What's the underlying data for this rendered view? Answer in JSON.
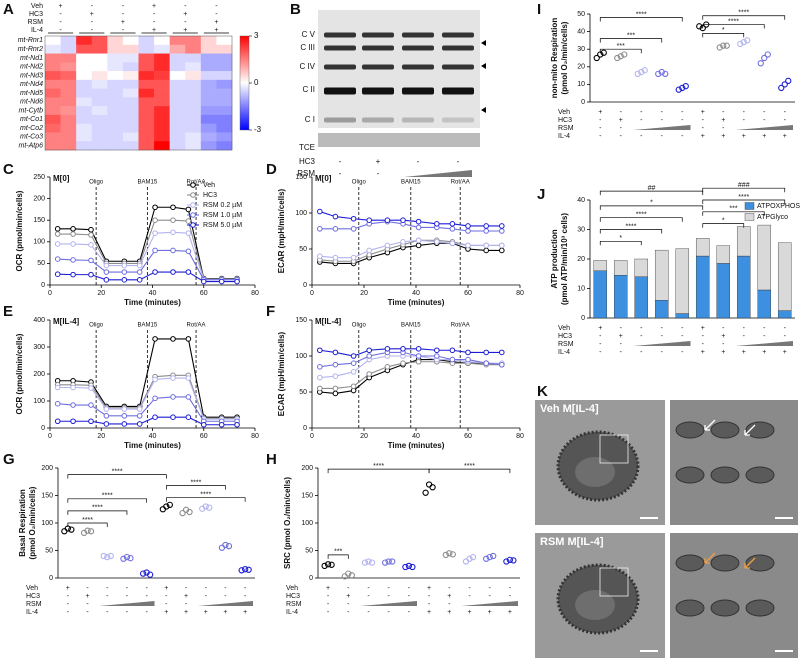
{
  "chart_data": [
    {
      "type": "heatmap",
      "panel": "A",
      "header_labels": [
        "Veh",
        "HC3",
        "RSM",
        "IL-4"
      ],
      "header_rows": [
        [
          "+",
          "-",
          "-",
          "+",
          "-",
          "-"
        ],
        [
          "-",
          "+",
          "-",
          "-",
          "+",
          "-"
        ],
        [
          "-",
          "-",
          "+",
          "-",
          "-",
          "+"
        ],
        [
          "-",
          "-",
          "-",
          "+",
          "+",
          "+"
        ]
      ],
      "rows": [
        "mt-Rnr1",
        "mt-Rnr2",
        "mt-Nd1",
        "mt-Nd2",
        "mt-Nd3",
        "mt-Nd4",
        "mt-Nd5",
        "mt-Nd6",
        "mt-Cytb",
        "mt-Co1",
        "mt-Co2",
        "mt-Co3",
        "mt-Atp6"
      ],
      "values": [
        [
          0,
          -0.5,
          2.5,
          2,
          0.5,
          0,
          -0.5,
          0,
          1.5,
          1.5,
          0.5,
          0
        ],
        [
          -0.3,
          -0.5,
          2,
          2,
          0.5,
          0.5,
          -0.5,
          -0.3,
          1,
          1.5,
          0.5,
          0.5
        ],
        [
          1.5,
          1.5,
          0,
          0,
          -0.3,
          -0.3,
          2,
          2.5,
          -0.5,
          -0.5,
          -1,
          -1
        ],
        [
          1.5,
          1.3,
          0,
          0,
          -0.3,
          -0.5,
          2,
          2.5,
          -0.5,
          -0.3,
          -1,
          -1
        ],
        [
          2,
          1.8,
          0,
          0.3,
          0,
          0.2,
          2.5,
          2.3,
          0,
          0.3,
          -0.5,
          -0.5
        ],
        [
          1.5,
          1.5,
          -0.5,
          -0.3,
          -0.5,
          -0.5,
          2,
          2,
          -0.5,
          -0.5,
          -1,
          -1.2
        ],
        [
          1.8,
          1.5,
          -0.5,
          -0.5,
          -0.5,
          -0.3,
          2.5,
          2,
          -0.5,
          -0.5,
          -1,
          -1
        ],
        [
          1.5,
          1.5,
          -0.3,
          -0.5,
          -0.5,
          -0.5,
          2,
          2,
          -0.5,
          -0.5,
          -1,
          -1
        ],
        [
          1.5,
          1.3,
          -0.5,
          -0.3,
          -0.5,
          -0.5,
          2,
          2.5,
          -0.5,
          -0.5,
          -1.2,
          -1.2
        ],
        [
          2,
          1.5,
          -0.5,
          -0.5,
          -0.5,
          -0.5,
          2,
          2.5,
          -0.5,
          -0.5,
          -1.5,
          -1.5
        ],
        [
          1.8,
          1.5,
          -0.3,
          -0.5,
          -0.5,
          -0.5,
          2,
          2.5,
          -0.5,
          -0.5,
          -1.2,
          -1.5
        ],
        [
          1.5,
          1.5,
          -0.3,
          -0.5,
          -0.5,
          -0.3,
          2,
          2.5,
          -0.5,
          -0.3,
          -1,
          -1.2
        ],
        [
          1.5,
          1.5,
          -0.5,
          -0.5,
          -0.5,
          -0.5,
          2,
          3,
          -0.5,
          -0.3,
          -1.2,
          -1.5
        ]
      ],
      "zlim": [
        -3,
        3
      ],
      "zticks": [
        3,
        0,
        -3
      ]
    },
    {
      "type": "line",
      "panel": "C",
      "title": "M[0]",
      "ylabel": "OCR (pmol/min/cells)",
      "xlabel": "Time (minutes)",
      "xlim": [
        0,
        80
      ],
      "xticks": [
        0,
        20,
        40,
        60,
        80
      ],
      "ylim": [
        0,
        250
      ],
      "yticks": [
        0,
        50,
        100,
        150,
        200,
        250
      ],
      "injections": [
        {
          "label": "Oligo",
          "x": 18
        },
        {
          "label": "BAM15",
          "x": 38
        },
        {
          "label": "Rot/AA",
          "x": 57
        }
      ],
      "x": [
        3,
        9,
        16,
        22,
        29,
        35,
        41,
        48,
        54,
        60,
        67,
        73
      ],
      "series": [
        {
          "name": "Veh",
          "color": "#000000",
          "values": [
            130,
            130,
            128,
            55,
            55,
            55,
            180,
            180,
            175,
            15,
            15,
            15
          ]
        },
        {
          "name": "HC3",
          "color": "#8c8c8c",
          "values": [
            118,
            118,
            116,
            50,
            50,
            50,
            150,
            150,
            148,
            14,
            14,
            14
          ]
        },
        {
          "name": "RSM 0.2 µM",
          "color": "#b3b3ef",
          "values": [
            95,
            95,
            93,
            45,
            45,
            45,
            120,
            122,
            120,
            13,
            13,
            13
          ]
        },
        {
          "name": "RSM 1.0 µM",
          "color": "#6e6ede",
          "values": [
            60,
            58,
            57,
            30,
            30,
            30,
            80,
            80,
            78,
            12,
            12,
            12
          ]
        },
        {
          "name": "RSM 5.0 µM",
          "color": "#1c1cd6",
          "values": [
            25,
            24,
            24,
            12,
            12,
            12,
            30,
            30,
            30,
            8,
            8,
            8
          ]
        }
      ]
    },
    {
      "type": "line",
      "panel": "D",
      "title": "M[0]",
      "ylabel": "ECAR (mpH/min/cells)",
      "xlabel": "Time (minutes)",
      "xlim": [
        0,
        80
      ],
      "xticks": [
        0,
        20,
        40,
        60,
        80
      ],
      "ylim": [
        0,
        150
      ],
      "yticks": [
        0,
        50,
        100,
        150
      ],
      "injections": [
        {
          "label": "Oligo",
          "x": 18
        },
        {
          "label": "BAM15",
          "x": 38
        },
        {
          "label": "Rot/AA",
          "x": 57
        }
      ],
      "x": [
        3,
        9,
        16,
        22,
        29,
        35,
        41,
        48,
        54,
        60,
        67,
        73
      ],
      "series": [
        {
          "color": "#000000",
          "values": [
            32,
            30,
            30,
            38,
            45,
            52,
            55,
            58,
            58,
            50,
            48,
            48
          ]
        },
        {
          "color": "#8c8c8c",
          "values": [
            35,
            33,
            33,
            42,
            50,
            56,
            62,
            62,
            60,
            55,
            55,
            55
          ]
        },
        {
          "color": "#b3b3ef",
          "values": [
            40,
            38,
            38,
            48,
            55,
            60,
            62,
            60,
            58,
            55,
            55,
            55
          ]
        },
        {
          "color": "#6e6ede",
          "values": [
            78,
            78,
            78,
            85,
            88,
            85,
            80,
            80,
            78,
            75,
            75,
            75
          ]
        },
        {
          "color": "#1c1cd6",
          "values": [
            102,
            95,
            92,
            90,
            90,
            90,
            88,
            85,
            85,
            82,
            82,
            82
          ]
        }
      ]
    },
    {
      "type": "line",
      "panel": "E",
      "title": "M[IL-4]",
      "ylabel": "OCR (pmol/min/cells)",
      "xlabel": "Time (minutes)",
      "xlim": [
        0,
        80
      ],
      "xticks": [
        0,
        20,
        40,
        60,
        80
      ],
      "ylim": [
        0,
        400
      ],
      "yticks": [
        0,
        100,
        200,
        300,
        400
      ],
      "injections": [
        {
          "label": "Oligo",
          "x": 18
        },
        {
          "label": "BAM15",
          "x": 38
        },
        {
          "label": "Rot/AA",
          "x": 57
        }
      ],
      "x": [
        3,
        9,
        16,
        22,
        29,
        35,
        41,
        48,
        54,
        60,
        67,
        73
      ],
      "series": [
        {
          "color": "#000000",
          "values": [
            175,
            175,
            170,
            80,
            80,
            80,
            330,
            330,
            330,
            40,
            40,
            40
          ]
        },
        {
          "color": "#8c8c8c",
          "values": [
            160,
            160,
            158,
            75,
            75,
            75,
            190,
            195,
            195,
            35,
            35,
            35
          ]
        },
        {
          "color": "#b3b3ef",
          "values": [
            150,
            150,
            148,
            70,
            70,
            70,
            180,
            185,
            185,
            33,
            33,
            33
          ]
        },
        {
          "color": "#6e6ede",
          "values": [
            90,
            85,
            85,
            45,
            45,
            45,
            110,
            115,
            115,
            25,
            25,
            25
          ]
        },
        {
          "color": "#1c1cd6",
          "values": [
            25,
            25,
            25,
            15,
            15,
            15,
            40,
            40,
            40,
            12,
            12,
            12
          ]
        }
      ]
    },
    {
      "type": "line",
      "panel": "F",
      "title": "M[IL-4]",
      "ylabel": "ECAR (mpH/min/cells)",
      "xlabel": "Time (minutes)",
      "xlim": [
        0,
        80
      ],
      "xticks": [
        0,
        20,
        40,
        60,
        80
      ],
      "ylim": [
        0,
        150
      ],
      "yticks": [
        0,
        50,
        100,
        150
      ],
      "injections": [
        {
          "label": "Oligo",
          "x": 18
        },
        {
          "label": "BAM15",
          "x": 38
        },
        {
          "label": "Rot/AA",
          "x": 57
        }
      ],
      "x": [
        3,
        9,
        16,
        22,
        29,
        35,
        41,
        48,
        54,
        60,
        67,
        73
      ],
      "series": [
        {
          "color": "#000000",
          "values": [
            50,
            48,
            52,
            70,
            80,
            88,
            95,
            95,
            92,
            90,
            90,
            88
          ]
        },
        {
          "color": "#8c8c8c",
          "values": [
            55,
            55,
            58,
            75,
            85,
            90,
            92,
            92,
            90,
            90,
            88,
            88
          ]
        },
        {
          "color": "#b3b3ef",
          "values": [
            70,
            72,
            78,
            95,
            100,
            100,
            100,
            95,
            95,
            92,
            90,
            90
          ]
        },
        {
          "color": "#6e6ede",
          "values": [
            85,
            88,
            90,
            100,
            105,
            105,
            100,
            100,
            95,
            95,
            90,
            88
          ]
        },
        {
          "color": "#1c1cd6",
          "values": [
            108,
            105,
            100,
            108,
            110,
            110,
            110,
            108,
            108,
            105,
            105,
            105
          ]
        }
      ]
    },
    {
      "type": "dot",
      "panel": "G",
      "ylabel": [
        "Basal Respiration",
        "(pmol O₂/min/cells)"
      ],
      "ylim": [
        0,
        200
      ],
      "yticks": [
        0,
        50,
        100,
        150,
        200
      ],
      "colors": [
        "#000000",
        "#8c8c8c",
        "#b3b3ef",
        "#6e6ede",
        "#1c1cd6",
        "#000000",
        "#8c8c8c",
        "#b3b3ef",
        "#6e6ede",
        "#1c1cd6"
      ],
      "points": [
        [
          85,
          90,
          88
        ],
        [
          82,
          86,
          85
        ],
        [
          40,
          38,
          40
        ],
        [
          35,
          38,
          36
        ],
        [
          8,
          10,
          6
        ],
        [
          125,
          130,
          133
        ],
        [
          118,
          124,
          120
        ],
        [
          126,
          130,
          128
        ],
        [
          55,
          60,
          58
        ],
        [
          14,
          16,
          15
        ]
      ],
      "annotations": [
        "****",
        "****",
        "****",
        "****",
        "****",
        "****"
      ]
    },
    {
      "type": "dot",
      "panel": "H",
      "ylabel": [
        "SRC (pmol O₂/min/cells)"
      ],
      "ylim": [
        0,
        200
      ],
      "yticks": [
        0,
        50,
        100,
        150,
        200
      ],
      "colors": [
        "#000000",
        "#8c8c8c",
        "#b3b3ef",
        "#6e6ede",
        "#1c1cd6",
        "#000000",
        "#8c8c8c",
        "#b3b3ef",
        "#6e6ede",
        "#1c1cd6"
      ],
      "points": [
        [
          22,
          25,
          24
        ],
        [
          3,
          8,
          5
        ],
        [
          28,
          30,
          28
        ],
        [
          28,
          30,
          30
        ],
        [
          20,
          22,
          20
        ],
        [
          155,
          170,
          165
        ],
        [
          42,
          45,
          43
        ],
        [
          30,
          35,
          38
        ],
        [
          35,
          38,
          40
        ],
        [
          30,
          33,
          32
        ]
      ],
      "annotations": [
        "***",
        "****",
        "****"
      ]
    },
    {
      "type": "dot",
      "panel": "I",
      "ylabel": [
        "non-mito Respiration",
        "(pmol O₂/min/cells)"
      ],
      "ylim": [
        0,
        50
      ],
      "yticks": [
        0,
        10,
        20,
        30,
        40,
        50
      ],
      "colors": [
        "#000000",
        "#8c8c8c",
        "#b3b3ef",
        "#6e6ede",
        "#1c1cd6",
        "#000000",
        "#8c8c8c",
        "#b3b3ef",
        "#6e6ede",
        "#1c1cd6"
      ],
      "points": [
        [
          25,
          27,
          28
        ],
        [
          25,
          26,
          27
        ],
        [
          16,
          17,
          18
        ],
        [
          16,
          17,
          16
        ],
        [
          7,
          8,
          9
        ],
        [
          43,
          42,
          44
        ],
        [
          31,
          32,
          32
        ],
        [
          33,
          34,
          35
        ],
        [
          22,
          25,
          27
        ],
        [
          8,
          10,
          12
        ]
      ],
      "annotations": [
        "***",
        "***",
        "****",
        "*",
        "****",
        "****"
      ]
    },
    {
      "type": "stacked",
      "panel": "J",
      "ylabel": [
        "ATP production",
        "(pmol ATP/min/10³ cells)"
      ],
      "ylim": [
        0,
        40
      ],
      "yticks": [
        0,
        10,
        20,
        30,
        40
      ],
      "series": [
        {
          "name": "ATPOXPHOS",
          "color": "#3d8fe0",
          "values": [
            16,
            14.5,
            14,
            6,
            1.5,
            21,
            18.5,
            21,
            9.5,
            2.5
          ]
        },
        {
          "name": "ATPGlyco",
          "color": "#d9d9d9",
          "values": [
            3.5,
            5,
            6,
            17,
            22,
            6,
            6,
            10,
            22,
            23
          ]
        }
      ],
      "annotations": [
        "*",
        "****",
        "****",
        "*",
        "##",
        "*",
        "***",
        "****",
        "###"
      ]
    }
  ],
  "treatments": {
    "labels": [
      "Veh",
      "HC3",
      "RSM",
      "IL-4"
    ],
    "rows": [
      [
        "+",
        "-",
        "-",
        "-",
        "-",
        "+",
        "-",
        "-",
        "-",
        "-"
      ],
      [
        "-",
        "+",
        "-",
        "-",
        "-",
        "-",
        "+",
        "-",
        "-",
        "-"
      ],
      [
        "-",
        "-",
        null,
        null,
        null,
        "-",
        "-",
        null,
        null,
        null
      ],
      [
        "-",
        "-",
        "-",
        "-",
        "-",
        "+",
        "+",
        "+",
        "+",
        "+"
      ]
    ]
  },
  "blot": {
    "panel": "B",
    "bands": [
      "C V",
      "C III",
      "C IV",
      "C II",
      "C I"
    ],
    "loading": "TCE",
    "row_labels": [
      "HC3",
      "RSM"
    ],
    "rows": [
      [
        "-",
        "+",
        "-",
        "-"
      ],
      [
        "-",
        "-",
        null,
        null
      ]
    ]
  },
  "micrographs": {
    "panel": "K",
    "labels": [
      "Veh M[IL-4]",
      "RSM M[IL-4]"
    ]
  }
}
